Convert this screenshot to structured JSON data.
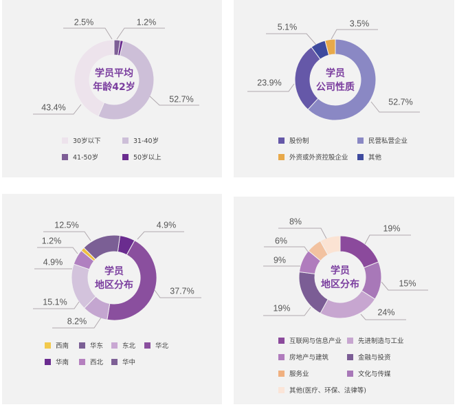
{
  "chart_data": [
    {
      "type": "pie",
      "title": "学员平均年龄42岁",
      "center_lines": [
        "学员平均",
        "年龄42岁"
      ],
      "categories": [
        "41-50岁",
        "50岁以上",
        "31-40岁",
        "30岁以下"
      ],
      "values": [
        2.5,
        1.2,
        52.7,
        43.4
      ],
      "labels": [
        "2.5%",
        "1.2%",
        "52.7%",
        "43.4%"
      ],
      "colors": [
        "#7e5e96",
        "#6a2c8f",
        "#cdbfd8",
        "#ede3ec"
      ],
      "legend": [
        {
          "label": "30岁以下",
          "color": "#ede3ec"
        },
        {
          "label": "31-40岁",
          "color": "#cdbfd8"
        },
        {
          "label": "41-50岁",
          "color": "#7e5e96"
        },
        {
          "label": "50岁以上",
          "color": "#6a2c8f"
        }
      ]
    },
    {
      "type": "pie",
      "title": "学员公司性质",
      "center_lines": [
        "学员",
        "公司性质"
      ],
      "categories": [
        "民营私营企业",
        "股份制",
        "其他",
        "外资或外资控股企业"
      ],
      "values": [
        52.7,
        23.9,
        5.1,
        3.5
      ],
      "labels": [
        "52.7%",
        "23.9%",
        "5.1%",
        "3.5%"
      ],
      "colors": [
        "#8a88c4",
        "#6558a8",
        "#3e4a9e",
        "#e8a94a"
      ],
      "legend": [
        {
          "label": "股份制",
          "color": "#6558a8"
        },
        {
          "label": "民营私营企业",
          "color": "#8a88c4"
        },
        {
          "label": "外资或外资控股企业",
          "color": "#e8a94a"
        },
        {
          "label": "其他",
          "color": "#3e4a9e"
        }
      ]
    },
    {
      "type": "pie",
      "title": "学员地区分布",
      "center_lines": [
        "学员",
        "地区分布"
      ],
      "categories": [
        "华南",
        "华北",
        "东北",
        "东北(浅)",
        "西北",
        "西南",
        "华东"
      ],
      "values": [
        4.9,
        37.7,
        8.2,
        15.1,
        4.9,
        1.2,
        12.5
      ],
      "labels": [
        "4.9%",
        "37.7%",
        "8.2%",
        "15.1%",
        "4.9%",
        "1.2%",
        "12.5%"
      ],
      "colors": [
        "#6a2c8f",
        "#8a4f9e",
        "#c4a6d0",
        "#d3c3dc",
        "#b080c0",
        "#f0c040",
        "#7b5f95"
      ],
      "legend": [
        {
          "label": "西南",
          "color": "#f2c94c"
        },
        {
          "label": "华东",
          "color": "#7b5f95"
        },
        {
          "label": "东北",
          "color": "#c9a8d3"
        },
        {
          "label": "华北",
          "color": "#8a4f9e"
        },
        {
          "label": "华南",
          "color": "#6a2c8f"
        },
        {
          "label": "西北",
          "color": "#b580bf"
        },
        {
          "label": "华中",
          "color": "#7e6096"
        }
      ]
    },
    {
      "type": "pie",
      "title": "学员地区分布",
      "center_lines": [
        "学员",
        "地区分布"
      ],
      "categories": [
        "互联网与信息产业",
        "房地产与建筑",
        "先进制造与工业",
        "金融与投资",
        "文化与传媒",
        "服务业",
        "其他(医疗、环保、法律等)"
      ],
      "values": [
        19,
        15,
        24,
        19,
        9,
        6,
        8
      ],
      "labels": [
        "19%",
        "15%",
        "24%",
        "19%",
        "9%",
        "6%",
        "8%"
      ],
      "colors": [
        "#8b4a9c",
        "#a878b8",
        "#c7a6d0",
        "#7b5d95",
        "#b07cbd",
        "#f2c2a0",
        "#fbe3d3"
      ],
      "legend": [
        {
          "label": "互联网与信息产业",
          "color": "#8b4a9c"
        },
        {
          "label": "先进制造与工业",
          "color": "#c7a6d0"
        },
        {
          "label": "房地产与建筑",
          "color": "#b07cbd"
        },
        {
          "label": "金融与投资",
          "color": "#7b5d95"
        },
        {
          "label": "服务业",
          "color": "#f0b080"
        },
        {
          "label": "文化与传媒",
          "color": "#a878b8"
        },
        {
          "label": "其他(医疗、环保、法律等)",
          "color": "#fbe5d8"
        }
      ]
    }
  ]
}
